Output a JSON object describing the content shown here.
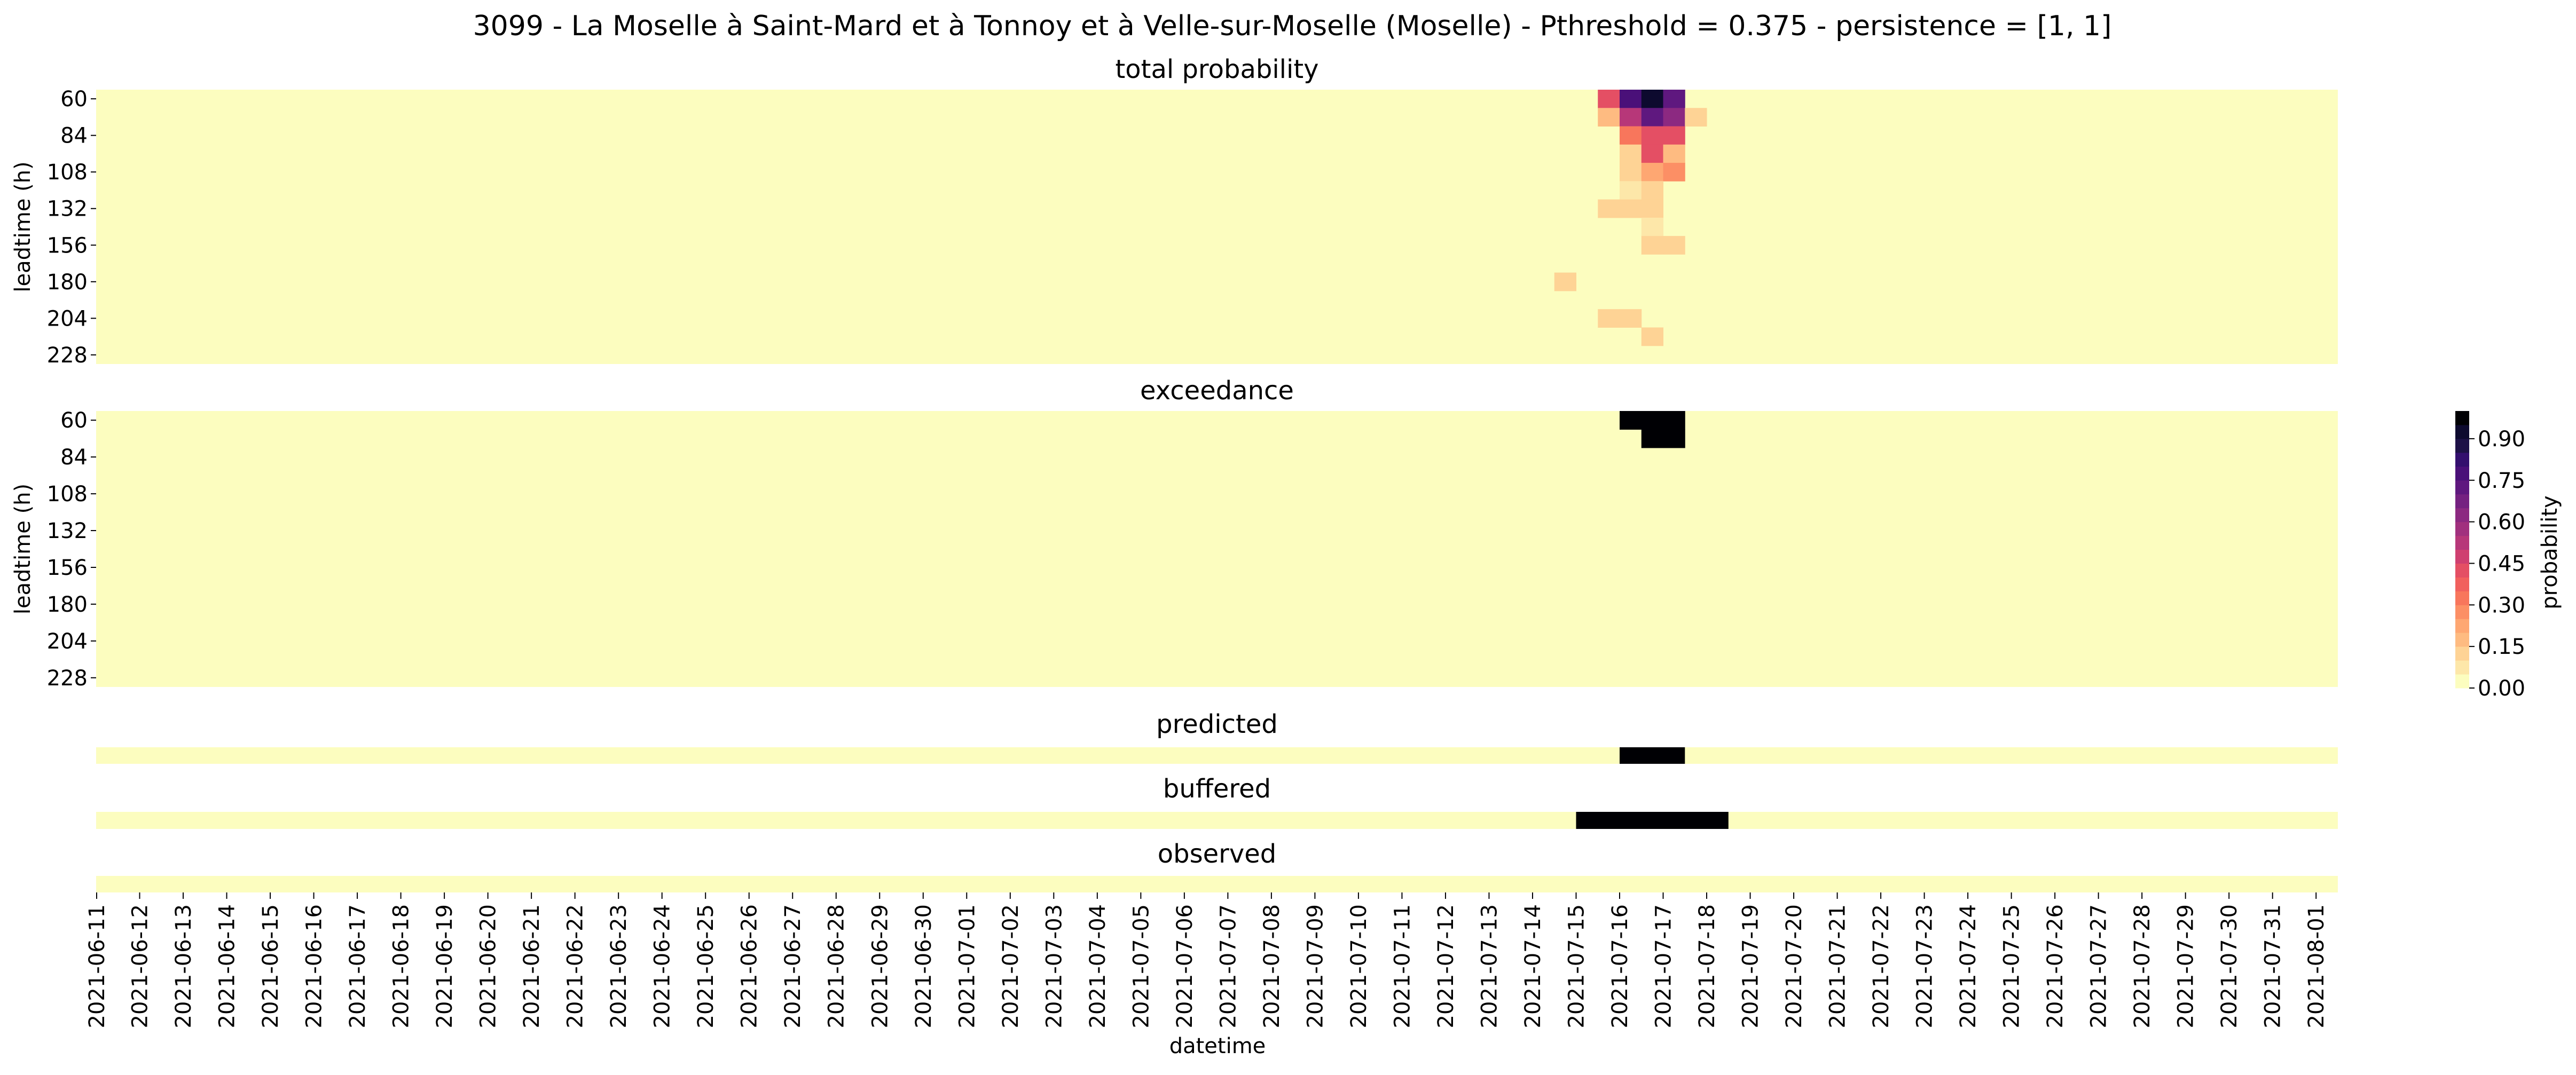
{
  "figure": {
    "title": "3099 - La Moselle à Saint-Mard et à Tonnoy et à Velle-sur-Moselle (Moselle) - Pthreshold = 0.375 - persistence = [1, 1]"
  },
  "chart_data": [
    {
      "type": "heatmap",
      "title": "total probability",
      "xlabel": "",
      "ylabel": "leadtime (h)",
      "y_ticks": [
        "60",
        "84",
        "108",
        "132",
        "156",
        "180",
        "204",
        "228"
      ],
      "x_start": "2021-06-11",
      "x_end": "2021-08-01",
      "x_step_hours": 12,
      "y_start": 60,
      "y_end": 240,
      "y_step": 12,
      "background_value": 0.0,
      "cells": [
        {
          "x": "2021-07-15 12:00",
          "y": 60,
          "v": 0.4
        },
        {
          "x": "2021-07-16 00:00",
          "y": 60,
          "v": 0.75
        },
        {
          "x": "2021-07-16 12:00",
          "y": 60,
          "v": 0.9
        },
        {
          "x": "2021-07-17 00:00",
          "y": 60,
          "v": 0.7
        },
        {
          "x": "2021-07-15 12:00",
          "y": 72,
          "v": 0.15
        },
        {
          "x": "2021-07-16 00:00",
          "y": 72,
          "v": 0.5
        },
        {
          "x": "2021-07-16 12:00",
          "y": 72,
          "v": 0.7
        },
        {
          "x": "2021-07-17 00:00",
          "y": 72,
          "v": 0.6
        },
        {
          "x": "2021-07-17 12:00",
          "y": 72,
          "v": 0.1
        },
        {
          "x": "2021-07-16 00:00",
          "y": 84,
          "v": 0.3
        },
        {
          "x": "2021-07-16 12:00",
          "y": 84,
          "v": 0.4
        },
        {
          "x": "2021-07-17 00:00",
          "y": 84,
          "v": 0.4
        },
        {
          "x": "2021-07-16 00:00",
          "y": 96,
          "v": 0.1
        },
        {
          "x": "2021-07-16 12:00",
          "y": 96,
          "v": 0.4
        },
        {
          "x": "2021-07-17 00:00",
          "y": 96,
          "v": 0.15
        },
        {
          "x": "2021-07-16 00:00",
          "y": 108,
          "v": 0.1
        },
        {
          "x": "2021-07-16 12:00",
          "y": 108,
          "v": 0.2
        },
        {
          "x": "2021-07-17 00:00",
          "y": 108,
          "v": 0.25
        },
        {
          "x": "2021-07-16 00:00",
          "y": 120,
          "v": 0.05
        },
        {
          "x": "2021-07-16 12:00",
          "y": 120,
          "v": 0.1
        },
        {
          "x": "2021-07-15 12:00",
          "y": 132,
          "v": 0.1
        },
        {
          "x": "2021-07-16 00:00",
          "y": 132,
          "v": 0.1
        },
        {
          "x": "2021-07-16 12:00",
          "y": 132,
          "v": 0.1
        },
        {
          "x": "2021-07-16 12:00",
          "y": 144,
          "v": 0.05
        },
        {
          "x": "2021-07-16 12:00",
          "y": 156,
          "v": 0.1
        },
        {
          "x": "2021-07-17 00:00",
          "y": 156,
          "v": 0.1
        },
        {
          "x": "2021-07-14 12:00",
          "y": 180,
          "v": 0.1
        },
        {
          "x": "2021-07-15 12:00",
          "y": 204,
          "v": 0.1
        },
        {
          "x": "2021-07-16 00:00",
          "y": 204,
          "v": 0.1
        },
        {
          "x": "2021-07-16 12:00",
          "y": 216,
          "v": 0.1
        }
      ]
    },
    {
      "type": "heatmap",
      "title": "exceedance",
      "xlabel": "",
      "ylabel": "leadtime (h)",
      "y_ticks": [
        "60",
        "84",
        "108",
        "132",
        "156",
        "180",
        "204",
        "228"
      ],
      "x_start": "2021-06-11",
      "x_end": "2021-08-01",
      "x_step_hours": 12,
      "y_start": 60,
      "y_end": 240,
      "y_step": 12,
      "background_value": 0.0,
      "cells": [
        {
          "x": "2021-07-16 00:00",
          "y": 60,
          "v": 1
        },
        {
          "x": "2021-07-16 12:00",
          "y": 60,
          "v": 1
        },
        {
          "x": "2021-07-17 00:00",
          "y": 60,
          "v": 1
        },
        {
          "x": "2021-07-16 12:00",
          "y": 72,
          "v": 1
        },
        {
          "x": "2021-07-17 00:00",
          "y": 72,
          "v": 1
        }
      ]
    },
    {
      "type": "heatmap",
      "title": "predicted",
      "xlabel": "",
      "ylabel": "",
      "x_start": "2021-06-11",
      "x_end": "2021-08-01",
      "x_step_hours": 12,
      "background_value": 0.0,
      "ones": [
        [
          "2021-07-16 00:00",
          "2021-07-17 12:00"
        ]
      ]
    },
    {
      "type": "heatmap",
      "title": "buffered",
      "xlabel": "",
      "ylabel": "",
      "x_start": "2021-06-11",
      "x_end": "2021-08-01",
      "x_step_hours": 12,
      "background_value": 0.0,
      "ones": [
        [
          "2021-07-15 00:00",
          "2021-07-18 12:00"
        ]
      ]
    },
    {
      "type": "heatmap",
      "title": "observed",
      "xlabel": "datetime",
      "ylabel": "",
      "x_start": "2021-06-11",
      "x_end": "2021-08-01",
      "x_step_hours": 12,
      "background_value": 0.0,
      "ones": []
    }
  ],
  "x_ticks": [
    "2021-06-11",
    "2021-06-12",
    "2021-06-13",
    "2021-06-14",
    "2021-06-15",
    "2021-06-16",
    "2021-06-17",
    "2021-06-18",
    "2021-06-19",
    "2021-06-20",
    "2021-06-21",
    "2021-06-22",
    "2021-06-23",
    "2021-06-24",
    "2021-06-25",
    "2021-06-26",
    "2021-06-27",
    "2021-06-28",
    "2021-06-29",
    "2021-06-30",
    "2021-07-01",
    "2021-07-02",
    "2021-07-03",
    "2021-07-04",
    "2021-07-05",
    "2021-07-06",
    "2021-07-07",
    "2021-07-08",
    "2021-07-09",
    "2021-07-10",
    "2021-07-11",
    "2021-07-12",
    "2021-07-13",
    "2021-07-14",
    "2021-07-15",
    "2021-07-16",
    "2021-07-17",
    "2021-07-18",
    "2021-07-19",
    "2021-07-20",
    "2021-07-21",
    "2021-07-22",
    "2021-07-23",
    "2021-07-24",
    "2021-07-25",
    "2021-07-26",
    "2021-07-27",
    "2021-07-28",
    "2021-07-29",
    "2021-07-30",
    "2021-07-31",
    "2021-08-01"
  ],
  "colorbar": {
    "label": "probability",
    "ticks": [
      "0.00",
      "0.15",
      "0.30",
      "0.45",
      "0.60",
      "0.75",
      "0.90"
    ],
    "range": [
      0,
      1
    ],
    "levels": 20,
    "colormap": "magma_r",
    "colors": [
      "#fcfdbf",
      "#fde7a9",
      "#fed395",
      "#febb81",
      "#fea772",
      "#fc8f65",
      "#f8765c",
      "#f1605d",
      "#e44f64",
      "#cf4070",
      "#b73779",
      "#a1307e",
      "#8c2981",
      "#752181",
      "#5f187f",
      "#4a1079",
      "#330f6e",
      "#1d1147",
      "#0d0a2f",
      "#000004"
    ]
  }
}
